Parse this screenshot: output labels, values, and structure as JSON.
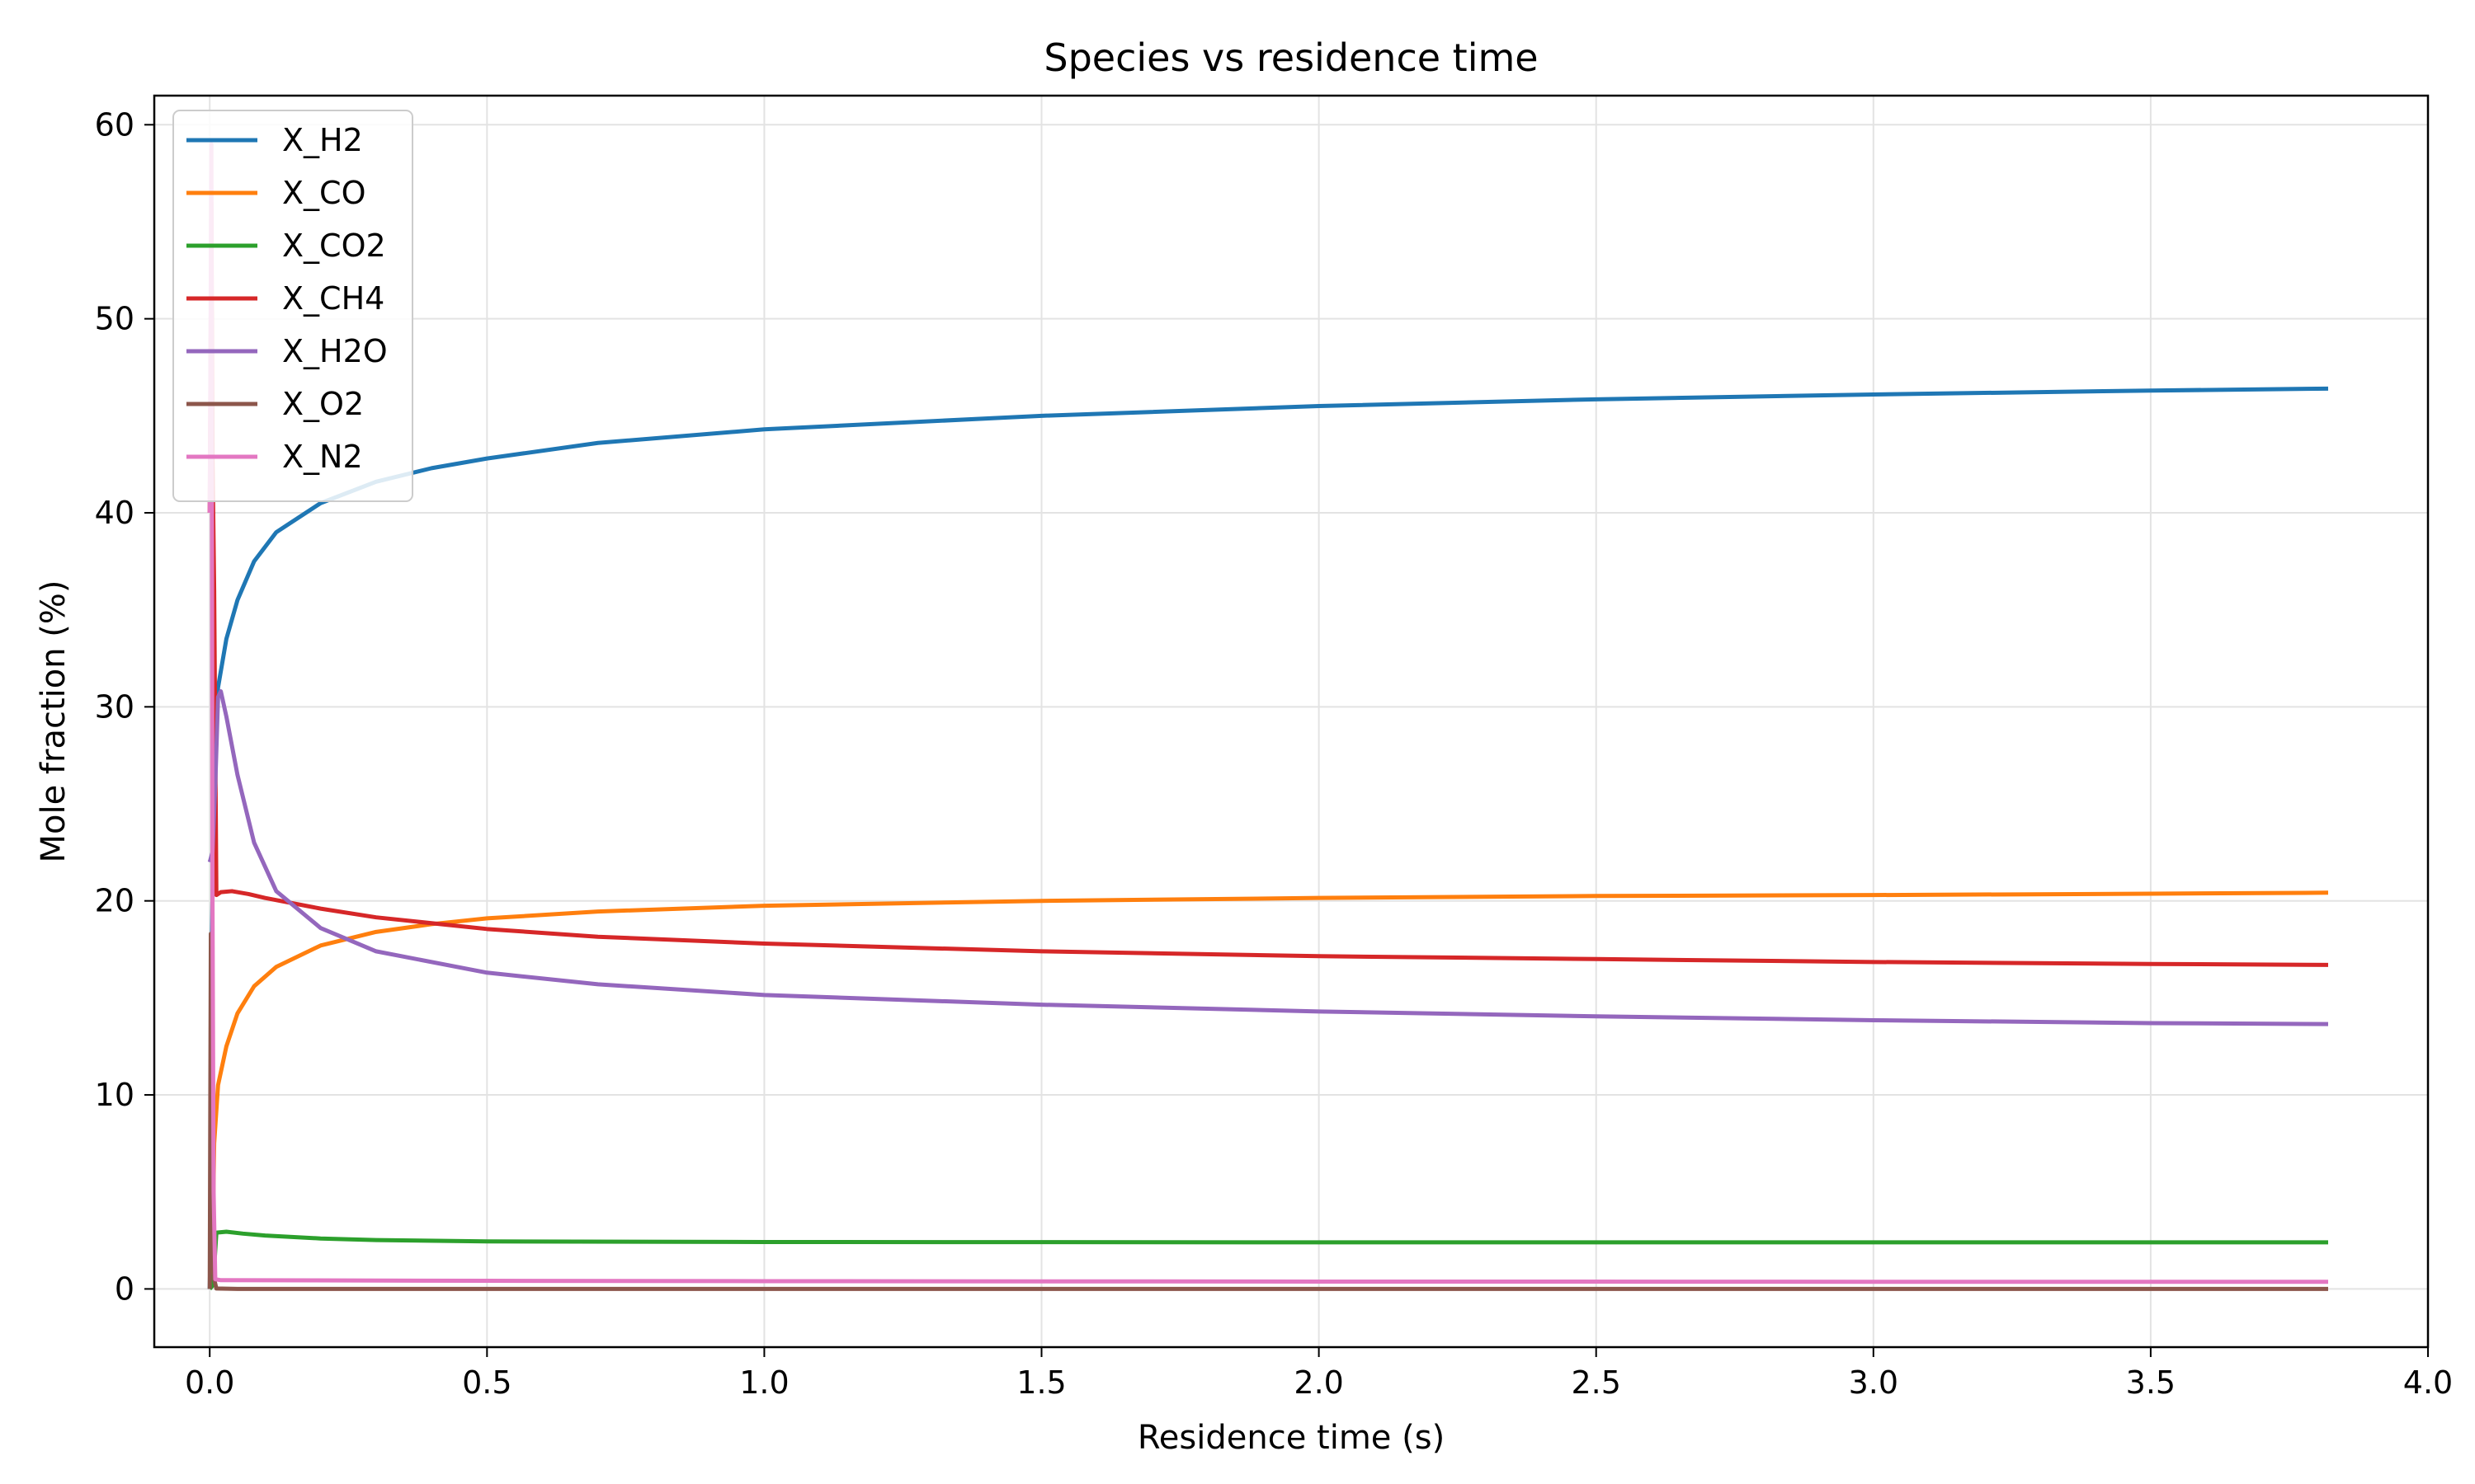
{
  "chart_data": {
    "type": "line",
    "title": "Species vs residence time",
    "xlabel": "Residence time (s)",
    "ylabel": "Mole fraction (%)",
    "xlim": [
      -0.1,
      4.0
    ],
    "ylim": [
      -3,
      61.5
    ],
    "xticks": [
      0.0,
      0.5,
      1.0,
      1.5,
      2.0,
      2.5,
      3.0,
      3.5,
      4.0
    ],
    "xtick_labels": [
      "0.0",
      "0.5",
      "1.0",
      "1.5",
      "2.0",
      "2.5",
      "3.0",
      "3.5",
      "4.0"
    ],
    "yticks": [
      0,
      10,
      20,
      30,
      40,
      50,
      60
    ],
    "ytick_labels": [
      "0",
      "10",
      "20",
      "30",
      "40",
      "50",
      "60"
    ],
    "grid": true,
    "legend_position": "top-left",
    "series": [
      {
        "name": "X_H2",
        "color": "#1f77b4",
        "points": [
          [
            0.0,
            0
          ],
          [
            0.002,
            3
          ],
          [
            0.004,
            18
          ],
          [
            0.008,
            27
          ],
          [
            0.015,
            31
          ],
          [
            0.03,
            33.5
          ],
          [
            0.05,
            35.5
          ],
          [
            0.08,
            37.5
          ],
          [
            0.12,
            39
          ],
          [
            0.2,
            40.5
          ],
          [
            0.3,
            41.6
          ],
          [
            0.4,
            42.3
          ],
          [
            0.5,
            42.8
          ],
          [
            0.7,
            43.6
          ],
          [
            1.0,
            44.3
          ],
          [
            1.5,
            45.0
          ],
          [
            2.0,
            45.5
          ],
          [
            2.5,
            45.85
          ],
          [
            3.0,
            46.1
          ],
          [
            3.5,
            46.3
          ],
          [
            3.82,
            46.4
          ]
        ]
      },
      {
        "name": "X_CO",
        "color": "#ff7f0e",
        "points": [
          [
            0.0,
            0
          ],
          [
            0.004,
            0.3
          ],
          [
            0.008,
            7.5
          ],
          [
            0.015,
            10.5
          ],
          [
            0.03,
            12.5
          ],
          [
            0.05,
            14.2
          ],
          [
            0.08,
            15.6
          ],
          [
            0.12,
            16.6
          ],
          [
            0.2,
            17.7
          ],
          [
            0.3,
            18.4
          ],
          [
            0.4,
            18.8
          ],
          [
            0.5,
            19.1
          ],
          [
            0.7,
            19.45
          ],
          [
            1.0,
            19.75
          ],
          [
            1.5,
            20.0
          ],
          [
            2.0,
            20.15
          ],
          [
            2.5,
            20.25
          ],
          [
            3.0,
            20.3
          ],
          [
            3.5,
            20.37
          ],
          [
            3.82,
            20.42
          ]
        ]
      },
      {
        "name": "X_CO2",
        "color": "#2ca02c",
        "points": [
          [
            0.0,
            0
          ],
          [
            0.006,
            0.2
          ],
          [
            0.012,
            2.9
          ],
          [
            0.03,
            2.95
          ],
          [
            0.06,
            2.85
          ],
          [
            0.1,
            2.75
          ],
          [
            0.2,
            2.6
          ],
          [
            0.3,
            2.52
          ],
          [
            0.5,
            2.45
          ],
          [
            1.0,
            2.42
          ],
          [
            2.0,
            2.4
          ],
          [
            3.0,
            2.4
          ],
          [
            3.82,
            2.4
          ]
        ]
      },
      {
        "name": "X_CH4",
        "color": "#d62728",
        "points": [
          [
            0.0,
            40
          ],
          [
            0.003,
            56
          ],
          [
            0.005,
            43
          ],
          [
            0.008,
            36
          ],
          [
            0.012,
            20.3
          ],
          [
            0.02,
            20.45
          ],
          [
            0.04,
            20.5
          ],
          [
            0.07,
            20.35
          ],
          [
            0.1,
            20.15
          ],
          [
            0.2,
            19.6
          ],
          [
            0.3,
            19.15
          ],
          [
            0.5,
            18.55
          ],
          [
            0.7,
            18.15
          ],
          [
            1.0,
            17.8
          ],
          [
            1.5,
            17.4
          ],
          [
            2.0,
            17.15
          ],
          [
            2.5,
            17.0
          ],
          [
            3.0,
            16.85
          ],
          [
            3.5,
            16.75
          ],
          [
            3.82,
            16.7
          ]
        ]
      },
      {
        "name": "X_H2O",
        "color": "#9467bd",
        "points": [
          [
            0.0,
            22
          ],
          [
            0.005,
            22.5
          ],
          [
            0.01,
            26
          ],
          [
            0.015,
            30.5
          ],
          [
            0.02,
            30.8
          ],
          [
            0.03,
            29.5
          ],
          [
            0.05,
            26.5
          ],
          [
            0.08,
            23
          ],
          [
            0.12,
            20.5
          ],
          [
            0.2,
            18.6
          ],
          [
            0.3,
            17.4
          ],
          [
            0.5,
            16.3
          ],
          [
            0.7,
            15.7
          ],
          [
            1.0,
            15.15
          ],
          [
            1.5,
            14.65
          ],
          [
            2.0,
            14.3
          ],
          [
            2.5,
            14.05
          ],
          [
            3.0,
            13.85
          ],
          [
            3.5,
            13.7
          ],
          [
            3.82,
            13.65
          ]
        ]
      },
      {
        "name": "X_O2",
        "color": "#8c564b",
        "points": [
          [
            0.0,
            0
          ],
          [
            0.002,
            18.3
          ],
          [
            0.004,
            9
          ],
          [
            0.006,
            3
          ],
          [
            0.008,
            0.5
          ],
          [
            0.012,
            0.02
          ],
          [
            0.05,
            0.0
          ],
          [
            3.82,
            0.0
          ]
        ]
      },
      {
        "name": "X_N2",
        "color": "#e377c2",
        "points": [
          [
            0.0,
            40
          ],
          [
            0.003,
            59
          ],
          [
            0.005,
            20
          ],
          [
            0.007,
            5
          ],
          [
            0.01,
            0.5
          ],
          [
            0.02,
            0.45
          ],
          [
            0.5,
            0.42
          ],
          [
            1.0,
            0.4
          ],
          [
            2.0,
            0.38
          ],
          [
            3.0,
            0.37
          ],
          [
            3.82,
            0.37
          ]
        ]
      }
    ]
  }
}
